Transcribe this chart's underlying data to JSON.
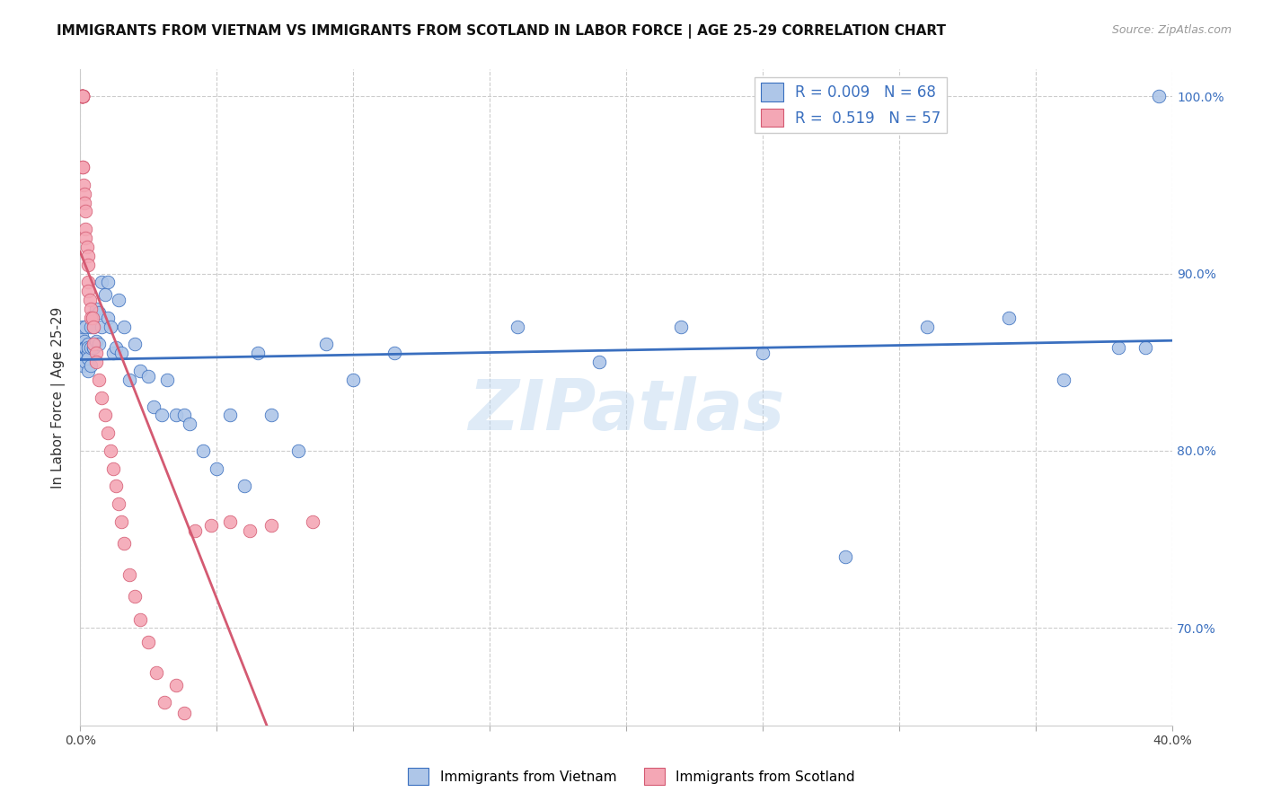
{
  "title": "IMMIGRANTS FROM VIETNAM VS IMMIGRANTS FROM SCOTLAND IN LABOR FORCE | AGE 25-29 CORRELATION CHART",
  "source": "Source: ZipAtlas.com",
  "ylabel": "In Labor Force | Age 25-29",
  "xlim": [
    0.0,
    0.4
  ],
  "ylim": [
    0.645,
    1.015
  ],
  "xticks": [
    0.0,
    0.05,
    0.1,
    0.15,
    0.2,
    0.25,
    0.3,
    0.35,
    0.4
  ],
  "yticks": [
    0.7,
    0.8,
    0.9,
    1.0
  ],
  "ytick_labels": [
    "70.0%",
    "80.0%",
    "90.0%",
    "100.0%"
  ],
  "xtick_labels": [
    "0.0%",
    "",
    "",
    "",
    "",
    "",
    "",
    "",
    "40.0%"
  ],
  "grid_color": "#cccccc",
  "vietnam_color": "#aec6e8",
  "vietnam_line_color": "#3a6fbf",
  "scotland_color": "#f4a7b5",
  "scotland_line_color": "#d45a72",
  "vietnam_R": 0.009,
  "vietnam_N": 68,
  "scotland_R": 0.519,
  "scotland_N": 57,
  "watermark": "ZIPatlas",
  "vietnam_x": [
    0.0005,
    0.0005,
    0.001,
    0.001,
    0.001,
    0.001,
    0.0015,
    0.0015,
    0.002,
    0.002,
    0.002,
    0.003,
    0.003,
    0.003,
    0.003,
    0.003,
    0.004,
    0.004,
    0.004,
    0.005,
    0.005,
    0.005,
    0.006,
    0.006,
    0.007,
    0.007,
    0.008,
    0.008,
    0.009,
    0.01,
    0.01,
    0.011,
    0.012,
    0.013,
    0.014,
    0.015,
    0.016,
    0.018,
    0.02,
    0.022,
    0.025,
    0.027,
    0.03,
    0.032,
    0.035,
    0.038,
    0.04,
    0.045,
    0.05,
    0.055,
    0.06,
    0.065,
    0.07,
    0.08,
    0.09,
    0.1,
    0.115,
    0.16,
    0.19,
    0.22,
    0.25,
    0.28,
    0.31,
    0.34,
    0.36,
    0.38,
    0.39,
    0.395
  ],
  "vietnam_y": [
    0.858,
    0.865,
    0.86,
    0.87,
    0.855,
    0.848,
    0.862,
    0.858,
    0.858,
    0.87,
    0.85,
    0.855,
    0.86,
    0.858,
    0.852,
    0.845,
    0.87,
    0.858,
    0.848,
    0.87,
    0.858,
    0.858,
    0.88,
    0.862,
    0.878,
    0.86,
    0.895,
    0.87,
    0.888,
    0.895,
    0.875,
    0.87,
    0.855,
    0.858,
    0.885,
    0.855,
    0.87,
    0.84,
    0.86,
    0.845,
    0.842,
    0.825,
    0.82,
    0.84,
    0.82,
    0.82,
    0.815,
    0.8,
    0.79,
    0.82,
    0.78,
    0.855,
    0.82,
    0.8,
    0.86,
    0.84,
    0.855,
    0.87,
    0.85,
    0.87,
    0.855,
    0.74,
    0.87,
    0.875,
    0.84,
    0.858,
    0.858,
    1.0
  ],
  "scotland_x": [
    0.0003,
    0.0005,
    0.0005,
    0.0007,
    0.0008,
    0.001,
    0.001,
    0.001,
    0.001,
    0.001,
    0.001,
    0.001,
    0.001,
    0.001,
    0.0013,
    0.0015,
    0.0015,
    0.002,
    0.002,
    0.002,
    0.0025,
    0.003,
    0.003,
    0.003,
    0.003,
    0.0035,
    0.004,
    0.004,
    0.0045,
    0.005,
    0.005,
    0.006,
    0.006,
    0.007,
    0.008,
    0.009,
    0.01,
    0.011,
    0.012,
    0.013,
    0.014,
    0.015,
    0.016,
    0.018,
    0.02,
    0.022,
    0.025,
    0.028,
    0.031,
    0.035,
    0.038,
    0.042,
    0.048,
    0.055,
    0.062,
    0.07,
    0.085
  ],
  "scotland_y": [
    1.0,
    1.0,
    1.0,
    1.0,
    1.0,
    1.0,
    1.0,
    1.0,
    1.0,
    1.0,
    1.0,
    1.0,
    0.96,
    0.96,
    0.95,
    0.945,
    0.94,
    0.935,
    0.925,
    0.92,
    0.915,
    0.91,
    0.905,
    0.895,
    0.89,
    0.885,
    0.88,
    0.875,
    0.875,
    0.87,
    0.86,
    0.855,
    0.85,
    0.84,
    0.83,
    0.82,
    0.81,
    0.8,
    0.79,
    0.78,
    0.77,
    0.76,
    0.748,
    0.73,
    0.718,
    0.705,
    0.692,
    0.675,
    0.658,
    0.668,
    0.652,
    0.755,
    0.758,
    0.76,
    0.755,
    0.758,
    0.76
  ]
}
